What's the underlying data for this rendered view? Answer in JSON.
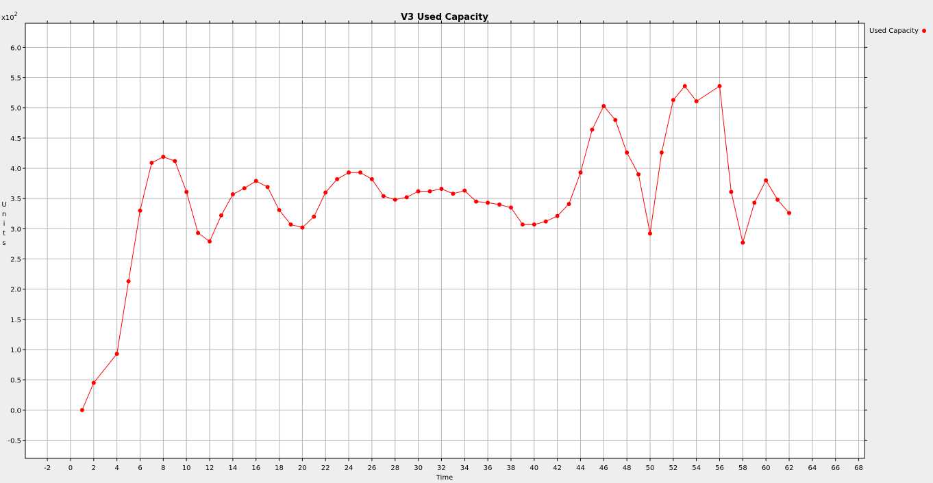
{
  "chart_data": {
    "type": "line",
    "title": "V3 Used Capacity",
    "xlabel": "Time",
    "ylabel": "Units",
    "y_multiplier": "x10",
    "y_multiplier_exp": "2",
    "xlim": [
      -3.9,
      68.5
    ],
    "ylim": [
      -0.8,
      6.4
    ],
    "x_ticks": [
      -2,
      0,
      2,
      4,
      6,
      8,
      10,
      12,
      14,
      16,
      18,
      20,
      22,
      24,
      26,
      28,
      30,
      32,
      34,
      36,
      38,
      40,
      42,
      44,
      46,
      48,
      50,
      52,
      54,
      56,
      58,
      60,
      62,
      64,
      66,
      68
    ],
    "y_ticks": [
      -0.5,
      0.0,
      0.5,
      1.0,
      1.5,
      2.0,
      2.5,
      3.0,
      3.5,
      4.0,
      4.5,
      5.0,
      5.5,
      6.0
    ],
    "grid": true,
    "legend_position": "top-right",
    "colors": {
      "series": "#ff0000",
      "grid": "#b4b4b4",
      "background": "#ffffff",
      "frame": "#000000"
    },
    "series": [
      {
        "name": "Used Capacity",
        "x": [
          1,
          2,
          4,
          5,
          6,
          7,
          8,
          9,
          10,
          11,
          12,
          13,
          14,
          15,
          16,
          17,
          18,
          19,
          20,
          21,
          22,
          23,
          24,
          25,
          26,
          27,
          28,
          29,
          30,
          31,
          32,
          33,
          34,
          35,
          36,
          37,
          38,
          39,
          40,
          41,
          42,
          43,
          44,
          45,
          46,
          47,
          48,
          49,
          50,
          51,
          52,
          53,
          54,
          56,
          57,
          58,
          59,
          60,
          61,
          62
        ],
        "y": [
          0.0,
          0.45,
          0.93,
          2.13,
          3.3,
          4.09,
          4.19,
          4.12,
          3.61,
          2.93,
          2.79,
          3.22,
          3.57,
          3.67,
          3.79,
          3.69,
          3.31,
          3.07,
          3.02,
          3.2,
          3.6,
          3.82,
          3.93,
          3.93,
          3.82,
          3.54,
          3.48,
          3.52,
          3.62,
          3.62,
          3.66,
          3.58,
          3.63,
          3.45,
          3.43,
          3.4,
          3.35,
          3.07,
          3.07,
          3.12,
          3.21,
          3.41,
          3.93,
          4.64,
          5.03,
          4.8,
          4.26,
          3.9,
          2.92,
          4.26,
          5.13,
          5.36,
          5.11,
          5.36,
          3.61,
          2.77,
          3.43,
          3.8,
          3.48,
          3.26
        ]
      }
    ]
  }
}
